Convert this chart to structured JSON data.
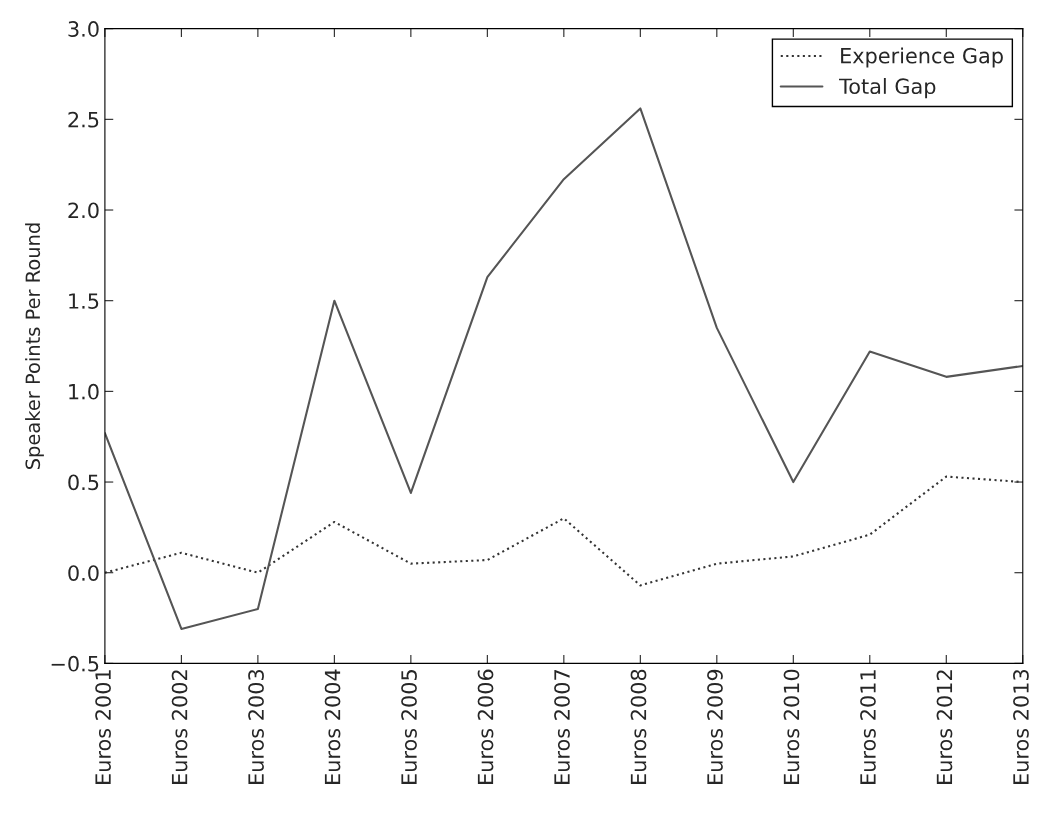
{
  "chart_data": {
    "type": "line",
    "ylabel": "Speaker Points Per Round",
    "categories": [
      "Euros 2001",
      "Euros 2002",
      "Euros 2003",
      "Euros 2004",
      "Euros 2005",
      "Euros 2006",
      "Euros 2007",
      "Euros 2008",
      "Euros 2009",
      "Euros 2010",
      "Euros 2011",
      "Euros 2012",
      "Euros 2013"
    ],
    "series": [
      {
        "name": "Experience Gap",
        "color": "#333333",
        "line_style": "dotted",
        "values": [
          0.0,
          0.11,
          0.0,
          0.28,
          0.05,
          0.07,
          0.3,
          -0.07,
          0.05,
          0.09,
          0.21,
          0.53,
          0.5
        ]
      },
      {
        "name": "Total Gap",
        "color": "#555555",
        "line_style": "solid",
        "values": [
          0.77,
          -0.31,
          -0.2,
          1.5,
          0.44,
          1.63,
          2.17,
          2.56,
          1.35,
          0.5,
          1.22,
          1.08,
          1.14
        ]
      }
    ],
    "ylim": [
      -0.5,
      3.0
    ],
    "yticks": [
      {
        "value": -0.5,
        "label": "−0.5"
      },
      {
        "value": 0,
        "label": "0.0"
      },
      0.5,
      {
        "value": 1,
        "label": "1.0"
      },
      1.5,
      {
        "value": 2,
        "label": "2.0"
      },
      2.5,
      {
        "value": 3,
        "label": "3.0"
      }
    ],
    "grid": false,
    "legend": "top right",
    "marker": "none"
  }
}
